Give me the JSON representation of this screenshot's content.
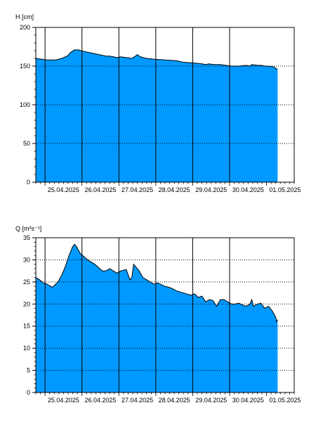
{
  "colors": {
    "fill": "#0099ff",
    "line": "#000000",
    "grid": "#000000",
    "background": "#ffffff"
  },
  "chart_data": [
    {
      "type": "area",
      "ylabel": "H [cm]",
      "ylim": [
        0,
        200
      ],
      "yticks": [
        "0",
        "50",
        "100",
        "150",
        "200"
      ],
      "xlim": [
        "24.04.2025 18:00",
        "01.05.2025 18:00"
      ],
      "x_tick_labels": [
        "25.04.2025",
        "26.04.2025",
        "27.04.2025",
        "28.04.2025",
        "29.04.2025",
        "30.04.2025",
        "01.05.2025"
      ],
      "grid": {
        "vertical": "solid, daily",
        "horizontal": "dotted"
      },
      "x_days": [
        0,
        0.15,
        0.3,
        0.45,
        0.55,
        0.7,
        0.85,
        0.95,
        1.05,
        1.15,
        1.3,
        1.5,
        1.7,
        1.9,
        2.0,
        2.1,
        2.2,
        2.3,
        2.45,
        2.6,
        2.7,
        2.75,
        2.8,
        2.9,
        3.0,
        3.2,
        3.5,
        3.8,
        4.0,
        4.3,
        4.5,
        4.6,
        4.7,
        4.8,
        5.0,
        5.3,
        5.5,
        5.7,
        5.8,
        5.85,
        6.0,
        6.1,
        6.2,
        6.3,
        6.45,
        6.5,
        6.55
      ],
      "values": [
        160,
        159,
        158,
        158,
        158,
        160,
        163,
        168,
        171,
        171,
        169,
        167,
        165,
        163,
        163,
        162,
        161,
        162,
        161,
        160,
        163,
        165,
        163,
        161,
        160,
        159,
        158,
        157,
        155,
        154,
        153,
        152,
        153,
        152,
        152,
        150,
        150,
        151,
        150,
        152,
        151,
        151,
        150,
        150,
        149,
        147,
        146
      ]
    },
    {
      "type": "area",
      "ylabel": "Q [m³s⁻¹]",
      "ylim": [
        0,
        35
      ],
      "yticks": [
        "0",
        "5",
        "10",
        "15",
        "20",
        "25",
        "30",
        "35"
      ],
      "xlim": [
        "24.04.2025 18:00",
        "01.05.2025 18:00"
      ],
      "x_tick_labels": [
        "25.04.2025",
        "26.04.2025",
        "27.04.2025",
        "28.04.2025",
        "29.04.2025",
        "30.04.2025",
        "01.05.2025"
      ],
      "grid": {
        "vertical": "solid, daily",
        "horizontal": "dotted"
      },
      "x_days": [
        0,
        0.1,
        0.2,
        0.3,
        0.45,
        0.5,
        0.6,
        0.7,
        0.8,
        0.9,
        1.0,
        1.05,
        1.1,
        1.2,
        1.4,
        1.6,
        1.8,
        1.9,
        2.0,
        2.1,
        2.2,
        2.3,
        2.45,
        2.55,
        2.6,
        2.65,
        2.7,
        2.8,
        2.9,
        3.0,
        3.2,
        3.3,
        3.5,
        3.6,
        3.7,
        3.8,
        4.0,
        4.2,
        4.3,
        4.4,
        4.5,
        4.6,
        4.7,
        4.8,
        4.9,
        5.0,
        5.1,
        5.2,
        5.3,
        5.4,
        5.5,
        5.6,
        5.7,
        5.8,
        5.85,
        5.9,
        6.0,
        6.1,
        6.2,
        6.3,
        6.4,
        6.5,
        6.52,
        6.55
      ],
      "values": [
        26,
        25.5,
        24.8,
        24.5,
        23.8,
        24.2,
        25,
        26.5,
        28.5,
        31,
        33,
        33.5,
        33,
        31.5,
        30,
        29,
        27.5,
        27.5,
        28,
        27.5,
        27,
        27.5,
        27.8,
        25.5,
        26,
        29,
        28.5,
        27.5,
        26,
        25.5,
        24.5,
        24.8,
        24,
        23.8,
        23.5,
        23,
        22.5,
        22,
        22.3,
        21.5,
        21.8,
        20.5,
        21,
        20.8,
        19.5,
        21,
        21,
        20.5,
        20,
        20,
        20.2,
        19.8,
        19.5,
        20,
        21,
        19.5,
        20,
        20.2,
        19,
        19.5,
        18.5,
        17,
        16,
        16.5
      ]
    }
  ]
}
